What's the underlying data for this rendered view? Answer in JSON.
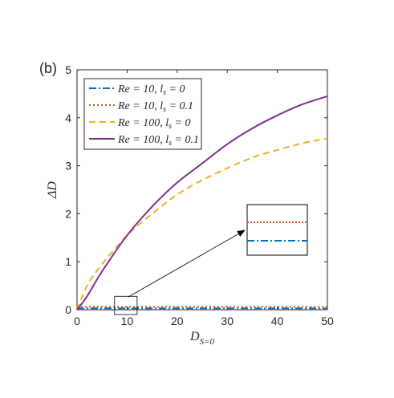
{
  "chart_data": {
    "type": "line",
    "panel_label": "(b)",
    "xlabel": "D_{S=0}",
    "ylabel": "ΔD",
    "xlim": [
      0,
      50
    ],
    "ylim": [
      0,
      5
    ],
    "xticks": [
      0,
      10,
      20,
      30,
      40,
      50
    ],
    "yticks": [
      0,
      1,
      2,
      3,
      4,
      5
    ],
    "grid": false,
    "legend_position": "top-left",
    "series": [
      {
        "name": "Re = 10, l_s = 0",
        "color": "#0072BD",
        "style": "dashdot",
        "x": [
          0,
          10,
          20,
          30,
          40,
          50
        ],
        "y": [
          0.03,
          0.03,
          0.03,
          0.03,
          0.03,
          0.03
        ]
      },
      {
        "name": "Re = 10, l_s = 0.1",
        "color": "#D95319",
        "style": "dotted",
        "x": [
          0,
          10,
          20,
          30,
          40,
          50
        ],
        "y": [
          0.06,
          0.06,
          0.06,
          0.06,
          0.06,
          0.06
        ]
      },
      {
        "name": "Re = 100, l_s = 0",
        "color": "#EDB120",
        "style": "dashed",
        "x": [
          0,
          2,
          5,
          10,
          15,
          20,
          25,
          30,
          35,
          40,
          45,
          50
        ],
        "y": [
          0.0,
          0.5,
          0.95,
          1.55,
          2.0,
          2.4,
          2.7,
          2.95,
          3.17,
          3.33,
          3.47,
          3.57
        ]
      },
      {
        "name": "Re = 100, l_s = 0.1",
        "color": "#7E2F8E",
        "style": "solid",
        "x": [
          0,
          2,
          5,
          10,
          15,
          20,
          25,
          30,
          35,
          40,
          45,
          50
        ],
        "y": [
          0.0,
          0.28,
          0.8,
          1.55,
          2.15,
          2.65,
          3.05,
          3.45,
          3.78,
          4.05,
          4.28,
          4.45
        ]
      }
    ],
    "annotation": {
      "type": "zoom-inset",
      "source_x": [
        7.5,
        12
      ],
      "source_y": [
        -0.1,
        0.28
      ],
      "note": "inset magnifies the two flat Re = 10 curves"
    }
  }
}
